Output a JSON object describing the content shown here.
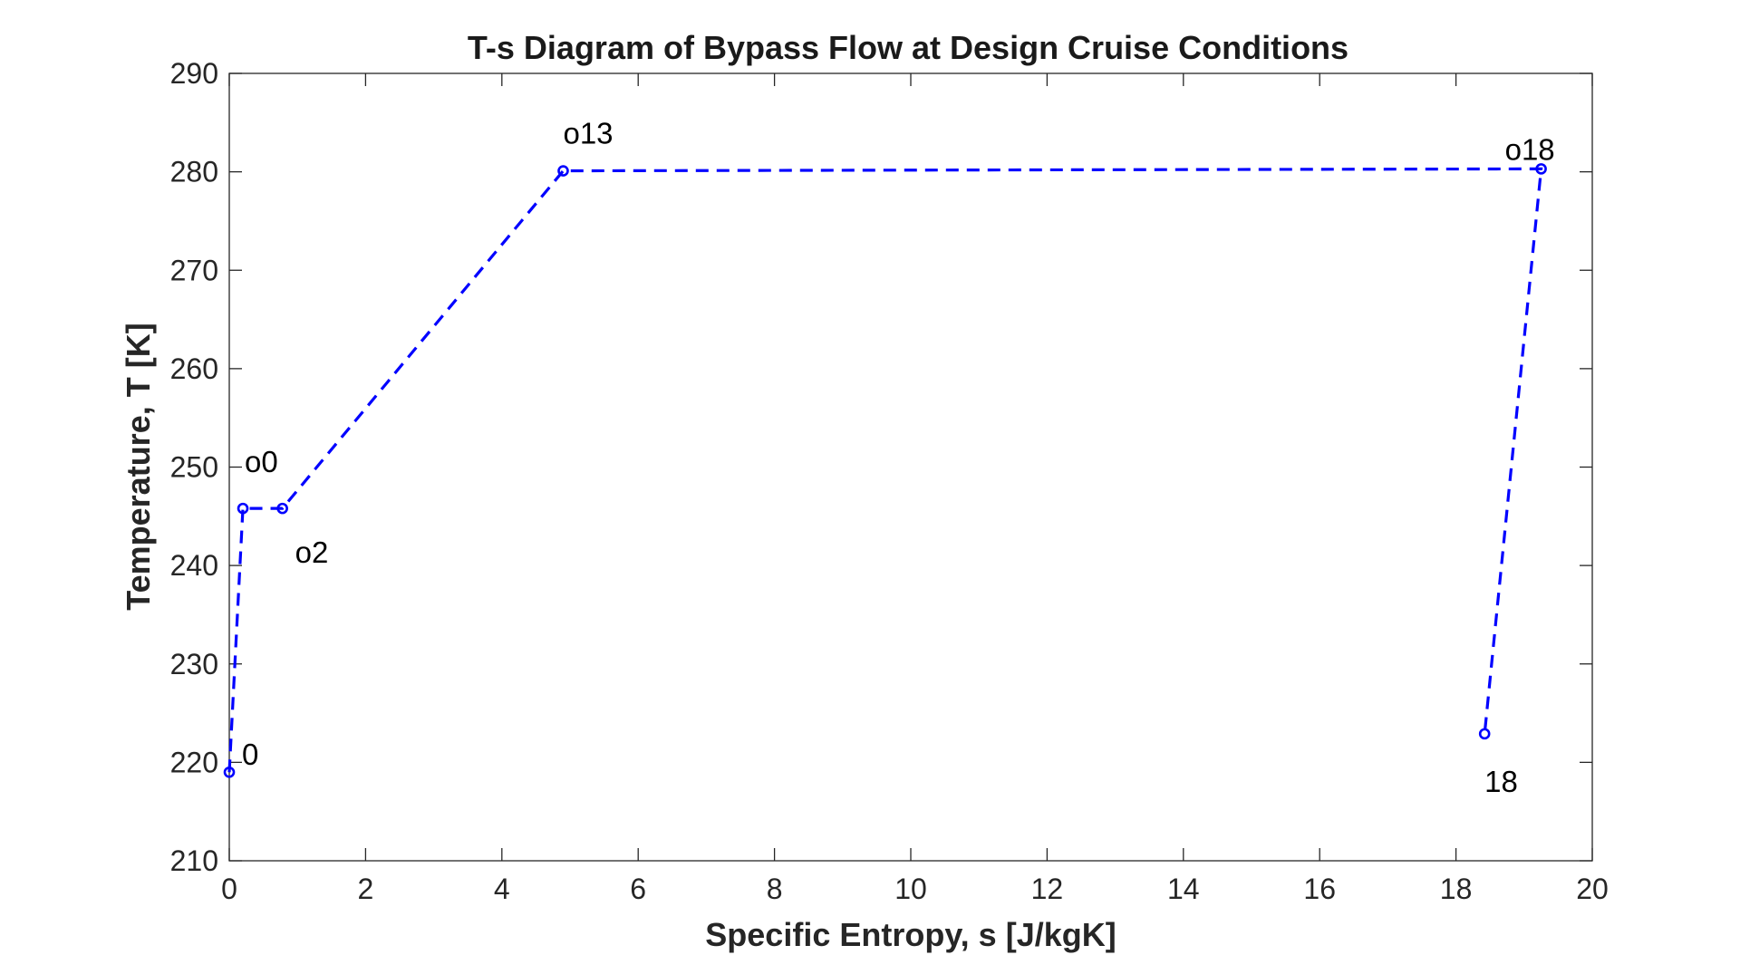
{
  "chart_data": {
    "type": "line",
    "title": "T-s Diagram of Bypass Flow at Design Cruise Conditions",
    "xlabel": "Specific Entropy, s [J/kgK]",
    "ylabel": "Temperature, T [K]",
    "xlim": [
      0,
      20
    ],
    "ylim": [
      210,
      290
    ],
    "xticks": [
      0,
      2,
      4,
      6,
      8,
      10,
      12,
      14,
      16,
      18,
      20
    ],
    "yticks": [
      210,
      220,
      230,
      240,
      250,
      260,
      270,
      280,
      290
    ],
    "grid": false,
    "legend": "none",
    "series": [
      {
        "line_style": "dashed",
        "marker": "circle",
        "color": "#0000ff",
        "x": [
          0.0,
          0.2,
          0.78,
          4.9,
          19.25,
          18.42
        ],
        "y": [
          219.0,
          245.8,
          245.8,
          280.1,
          280.3,
          222.9
        ],
        "point_labels": [
          "0",
          "o0",
          "o2",
          "o13",
          "o18",
          "18"
        ]
      }
    ]
  },
  "colors": {
    "series": "#0000ff",
    "axes": "#262626",
    "background": "#ffffff"
  }
}
